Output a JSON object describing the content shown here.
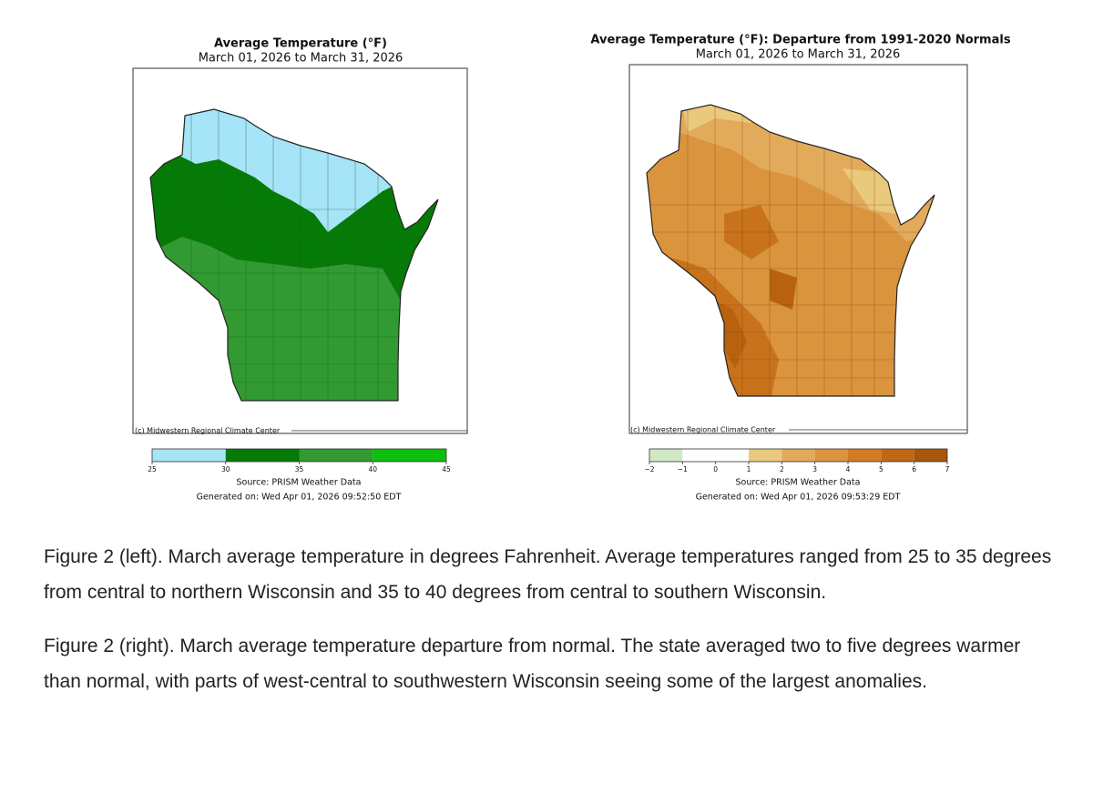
{
  "left_map": {
    "title": "Average Temperature (°F)",
    "subtitle": "March 01, 2026 to March 31, 2026",
    "credit": "(c) Midwestern Regional Climate Center",
    "legend": {
      "ticks": [
        25,
        30,
        35,
        40,
        45
      ],
      "colors": [
        "#a6e4f8",
        "#067a06",
        "#329a32",
        "#0cbf0c"
      ]
    },
    "source": "Source: PRISM Weather Data",
    "generated": "Generated on: Wed Apr 01, 2026 09:52:50 EDT"
  },
  "right_map": {
    "title": "Average Temperature (°F): Departure from 1991-2020 Normals",
    "subtitle": "March 01, 2026 to March 31, 2026",
    "credit": "(c) Midwestern Regional Climate Center",
    "legend": {
      "ticks": [
        {
          "value": -2,
          "label": "−2"
        },
        {
          "value": -1,
          "label": "−1"
        },
        0,
        1,
        2,
        3,
        4,
        5,
        6,
        7
      ],
      "colors": [
        "#cfe9c6",
        "#ffffff",
        "#ffffff",
        "#e9c97c",
        "#e2ab5c",
        "#da943e",
        "#d17c24",
        "#bf6914",
        "#a8560c"
      ]
    },
    "source": "Source: PRISM Weather Data",
    "generated": "Generated on: Wed Apr 01, 2026 09:53:29 EDT"
  },
  "captions": [
    "Figure 2 (left). March average temperature in degrees Fahrenheit. Average temperatures ranged from 25 to 35 degrees from central to northern Wisconsin and 35 to 40 degrees from central to southern Wisconsin.",
    "Figure 2 (right). March average temperature departure from normal. The state averaged two to five degrees warmer than normal, with parts of west-central to southwestern Wisconsin seeing some of the largest anomalies."
  ]
}
